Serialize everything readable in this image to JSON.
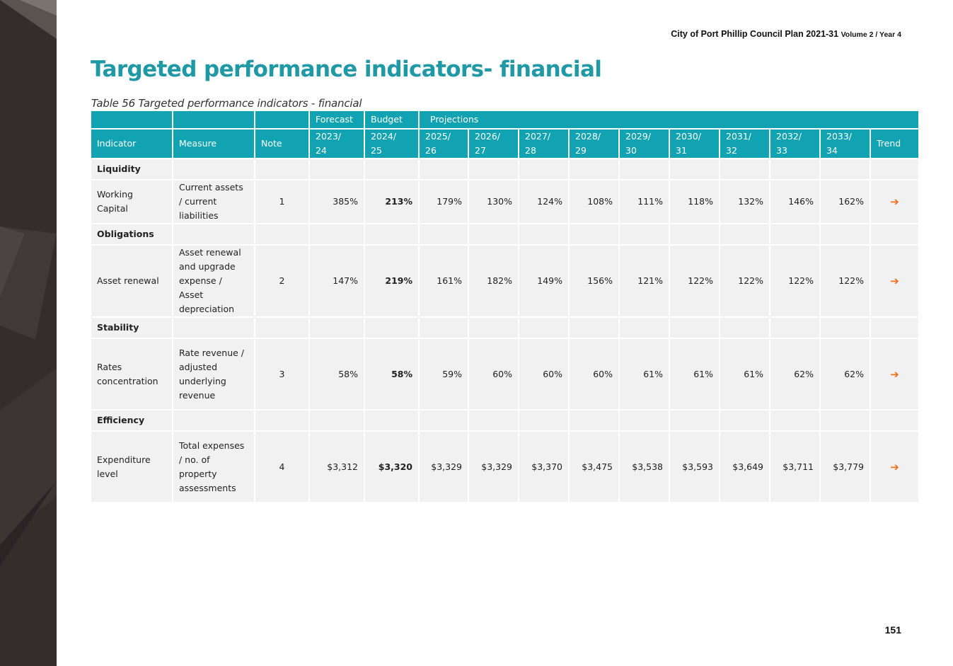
{
  "header": {
    "doc_title": "City of Port Phillip Council Plan 2021-31",
    "doc_sub": "Volume 2 / Year 4"
  },
  "title": "Targeted performance indicators- financial",
  "caption": "Table 56 Targeted performance indicators - financial",
  "table": {
    "group_headers": {
      "forecast": "Forecast",
      "budget": "Budget",
      "projections": "Projections"
    },
    "headers": {
      "indicator": "Indicator",
      "measure": "Measure",
      "note": "Note",
      "years": [
        "2023/\n24",
        "2024/\n25",
        "2025/\n26",
        "2026/\n27",
        "2027/\n28",
        "2028/\n29",
        "2029/\n30",
        "2030/\n31",
        "2031/\n32",
        "2032/\n33",
        "2033/\n34"
      ],
      "trend": "Trend"
    },
    "categories": [
      "Liquidity",
      "Obligations",
      "Stability",
      "Efficiency"
    ],
    "rows": [
      {
        "indicator": "Working Capital",
        "measure": "Current assets / current liabilities",
        "note": "1",
        "values": [
          "385%",
          "213%",
          "179%",
          "130%",
          "124%",
          "108%",
          "111%",
          "118%",
          "132%",
          "146%",
          "162%"
        ],
        "trend": "➔"
      },
      {
        "indicator": "Asset renewal",
        "measure": "Asset renewal and upgrade expense / Asset depreciation",
        "note": "2",
        "values": [
          "147%",
          "219%",
          "161%",
          "182%",
          "149%",
          "156%",
          "121%",
          "122%",
          "122%",
          "122%",
          "122%"
        ],
        "trend": "➔"
      },
      {
        "indicator": "Rates concentration",
        "measure": "Rate revenue / adjusted underlying revenue",
        "note": "3",
        "values": [
          "58%",
          "58%",
          "59%",
          "60%",
          "60%",
          "60%",
          "61%",
          "61%",
          "61%",
          "62%",
          "62%"
        ],
        "trend": "➔"
      },
      {
        "indicator": "Expenditure level",
        "measure": "Total expenses / no. of property assessments",
        "note": "4",
        "values": [
          "$3,312",
          "$3,320",
          "$3,329",
          "$3,329",
          "$3,370",
          "$3,475",
          "$3,538",
          "$3,593",
          "$3,649",
          "$3,711",
          "$3,779"
        ],
        "trend": "➔"
      }
    ]
  },
  "colors": {
    "title": "#1f99a6",
    "table_header": "#12a3b3",
    "row_bg": "#f1f1f1",
    "trend_arrow": "#ef6c1a",
    "sidebar": "#332d2c"
  },
  "icons": {
    "trend": "right-arrow-icon"
  },
  "page_number": "151"
}
